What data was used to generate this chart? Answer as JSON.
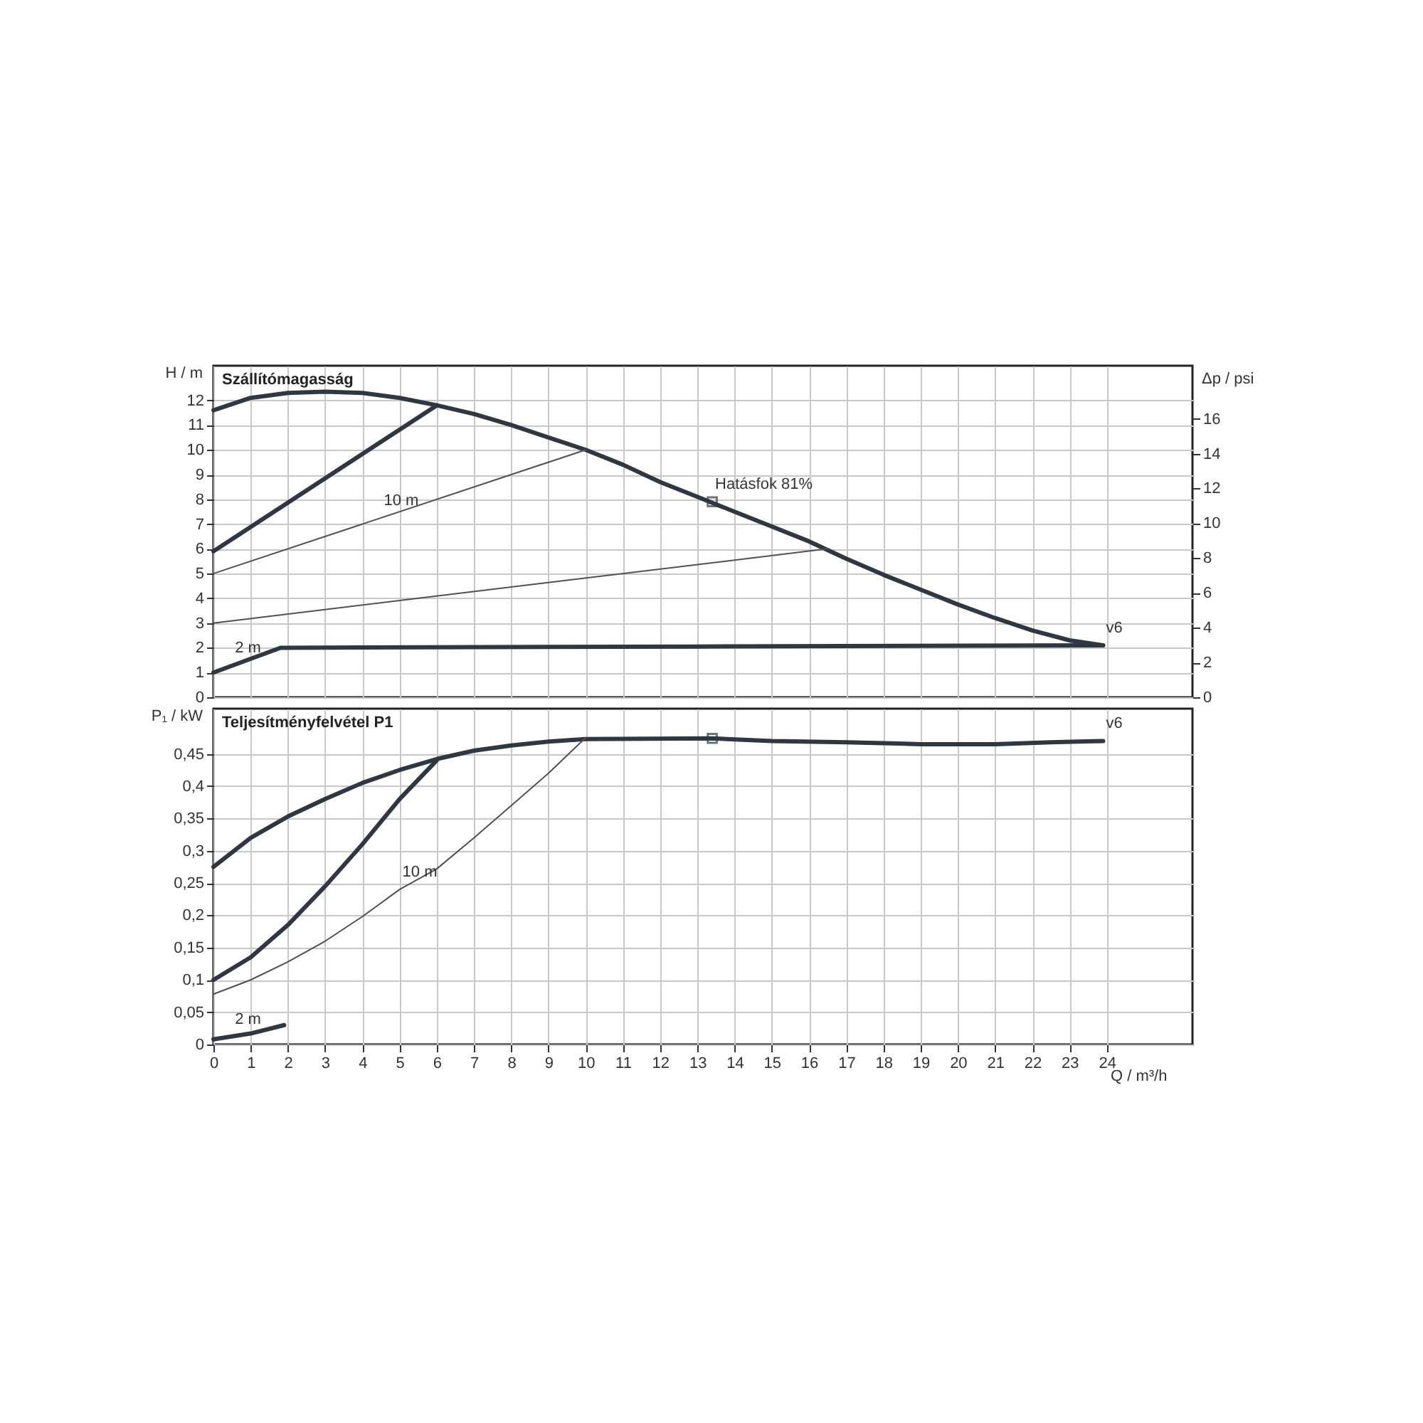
{
  "chart_data": [
    {
      "type": "line",
      "title": "Szállítómagasság",
      "ylabel": "H / m",
      "y2label": "Δp / psi",
      "xlim": [
        0,
        26.3
      ],
      "xticks": [
        0,
        1,
        2,
        3,
        4,
        5,
        6,
        7,
        8,
        9,
        10,
        11,
        12,
        13,
        14,
        15,
        16,
        17,
        18,
        19,
        20,
        21,
        22,
        23,
        24
      ],
      "ylim": [
        0,
        13.4
      ],
      "yticks": [
        0,
        1,
        2,
        3,
        4,
        5,
        6,
        7,
        8,
        9,
        10,
        11,
        12
      ],
      "y2lim": [
        0,
        19.05
      ],
      "y2ticks": [
        0,
        2,
        4,
        6,
        8,
        10,
        12,
        14,
        16
      ],
      "grid": true,
      "tick_labels": "y",
      "marker": "none",
      "line_style": "solid",
      "series": [
        {
          "color": "#2f3842",
          "x": [
            0,
            1,
            2,
            3,
            4,
            5,
            6,
            7,
            8,
            9,
            10,
            11,
            12,
            13,
            14,
            15,
            16,
            17,
            18,
            19,
            20,
            21,
            22,
            23,
            23.9
          ],
          "values": [
            11.6,
            12.1,
            12.3,
            12.35,
            12.3,
            12.1,
            11.8,
            11.45,
            11,
            10.5,
            10,
            9.4,
            8.7,
            8.1,
            7.5,
            6.9,
            6.3,
            5.6,
            4.95,
            4.35,
            3.75,
            3.2,
            2.7,
            2.3,
            2.1
          ]
        },
        {
          "color": "#2f3842",
          "x": [
            0,
            6
          ],
          "values": [
            5.9,
            11.8
          ]
        },
        {
          "color": "#505050",
          "x": [
            0,
            10
          ],
          "values": [
            5,
            10
          ]
        },
        {
          "color": "#505050",
          "x": [
            0,
            16.5
          ],
          "values": [
            3,
            6
          ]
        },
        {
          "color": "#2f3842",
          "x": [
            0,
            1.8,
            13,
            23.9
          ],
          "values": [
            1,
            2,
            2.05,
            2.1
          ]
        },
        {
          "type": "scatter",
          "marker": "square",
          "color": "#2f3842",
          "x": [
            13.4
          ],
          "values": [
            7.9
          ]
        }
      ],
      "annotations": [
        {
          "text": "Hatásfok  81%",
          "x": 13.4,
          "y": 7.9
        },
        {
          "text": "10 m",
          "x": 4.5,
          "y": 7.25
        },
        {
          "text": "2 m",
          "x": 0.5,
          "y": 1.28
        },
        {
          "text": "v6",
          "x": 23.9,
          "y": 2.1
        }
      ]
    },
    {
      "type": "line",
      "title": "Teljesítményfelvétel P1",
      "ylabel": "P₁ / kW",
      "xlabel": "Q / m³/h",
      "xlim": [
        0,
        26.3
      ],
      "xticks": [
        0,
        1,
        2,
        3,
        4,
        5,
        6,
        7,
        8,
        9,
        10,
        11,
        12,
        13,
        14,
        15,
        16,
        17,
        18,
        19,
        20,
        21,
        22,
        23,
        24
      ],
      "ylim": [
        0,
        0.52
      ],
      "yticks": [
        0,
        {
          "value": 0.05,
          "label": "0,05"
        },
        {
          "value": 0.1,
          "label": "0,1"
        },
        {
          "value": 0.15,
          "label": "0,15"
        },
        {
          "value": 0.2,
          "label": "0,2"
        },
        {
          "value": 0.25,
          "label": "0,25"
        },
        {
          "value": 0.3,
          "label": "0,3"
        },
        {
          "value": 0.35,
          "label": "0,35"
        },
        {
          "value": 0.4,
          "label": "0,4"
        },
        {
          "value": 0.45,
          "label": "0,45"
        }
      ],
      "grid": true,
      "marker": "none",
      "line_style": "solid",
      "series": [
        {
          "color": "#2f3842",
          "x": [
            0,
            1,
            2,
            3,
            4,
            5,
            6,
            7,
            8,
            9,
            10,
            13.4,
            15,
            17,
            19,
            21,
            22.5,
            23.9
          ],
          "values": [
            0.275,
            0.32,
            0.353,
            0.38,
            0.405,
            0.425,
            0.442,
            0.455,
            0.463,
            0.469,
            0.473,
            0.474,
            0.47,
            0.468,
            0.465,
            0.465,
            0.468,
            0.47
          ]
        },
        {
          "color": "#2f3842",
          "x": [
            0,
            1,
            2,
            3,
            4,
            5,
            6
          ],
          "values": [
            0.1,
            0.135,
            0.185,
            0.245,
            0.31,
            0.38,
            0.44
          ]
        },
        {
          "color": "#505050",
          "x": [
            0,
            1,
            2,
            3,
            4,
            5,
            6,
            7,
            8,
            9,
            10
          ],
          "values": [
            0.078,
            0.1,
            0.128,
            0.16,
            0.198,
            0.24,
            0.272,
            0.32,
            0.37,
            0.42,
            0.475
          ]
        },
        {
          "color": "#2f3842",
          "x": [
            0,
            1,
            1.9
          ],
          "values": [
            0.008,
            0.017,
            0.03
          ]
        },
        {
          "type": "scatter",
          "marker": "square",
          "color": "#2f3842",
          "x": [
            13.4
          ],
          "values": [
            0.474
          ]
        }
      ],
      "annotations": [
        {
          "text": "10 m",
          "x": 5,
          "y": 0.24
        },
        {
          "text": "2 m",
          "x": 0.5,
          "y": 0.0125
        },
        {
          "text": "v6",
          "x": 23.9,
          "y": 0.47
        }
      ]
    }
  ]
}
